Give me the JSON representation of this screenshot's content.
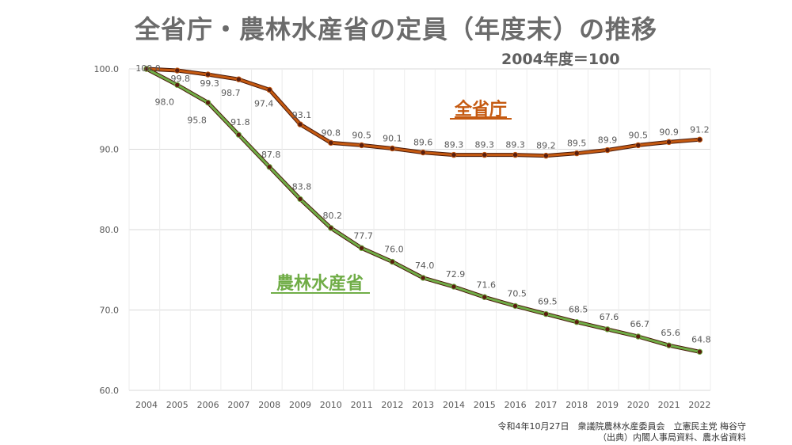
{
  "title": "全省庁・農林水産省の定員（年度末）の推移",
  "subtitle": "2004年度＝100",
  "source": {
    "line1": "令和4年10月27日　衆議院農林水産委員会　立憲民主党 梅谷守",
    "line2": "（出典）内閣人事局資料、農水省資料"
  },
  "colors": {
    "all_ministries": "#c55a11",
    "maff": "#70ad47",
    "marker": "#5a1f0f"
  },
  "chart_data": {
    "type": "line",
    "categories": [
      "2004",
      "2005",
      "2006",
      "2007",
      "2008",
      "2009",
      "2010",
      "2011",
      "2012",
      "2013",
      "2014",
      "2015",
      "2016",
      "2017",
      "2018",
      "2019",
      "2020",
      "2021",
      "2022"
    ],
    "ylim": [
      60,
      100
    ],
    "yticks": [
      "60.0",
      "70.0",
      "80.0",
      "90.0",
      "100.0"
    ],
    "grid": true,
    "series": [
      {
        "name": "全省庁",
        "values": [
          100.0,
          99.8,
          99.3,
          98.7,
          97.4,
          93.1,
          90.8,
          90.5,
          90.1,
          89.6,
          89.3,
          89.3,
          89.3,
          89.2,
          89.5,
          89.9,
          90.5,
          90.9,
          91.2
        ],
        "labels": [
          "100.0",
          "99.8",
          "99.3",
          "98.7",
          "97.4",
          "93.1",
          "90.8",
          "90.5",
          "90.1",
          "89.6",
          "89.3",
          "89.3",
          "89.3",
          "89.2",
          "89.5",
          "89.9",
          "90.5",
          "90.9",
          "91.2"
        ]
      },
      {
        "name": "農林水産省",
        "values": [
          100.0,
          98.0,
          95.8,
          91.8,
          87.8,
          83.8,
          80.2,
          77.7,
          76.0,
          74.0,
          72.9,
          71.6,
          70.5,
          69.5,
          68.5,
          67.6,
          66.7,
          65.6,
          64.8
        ],
        "labels": [
          "",
          "98.0",
          "95.8",
          "91.8",
          "87.8",
          "83.8",
          "80.2",
          "77.7",
          "76.0",
          "74.0",
          "72.9",
          "71.6",
          "70.5",
          "69.5",
          "68.5",
          "67.6",
          "66.7",
          "65.6",
          "64.8"
        ]
      }
    ]
  }
}
